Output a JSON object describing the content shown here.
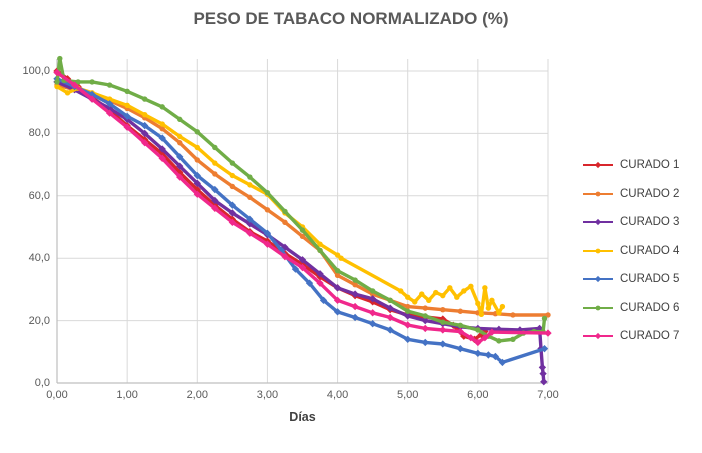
{
  "chart_data": {
    "type": "line",
    "title": "PESO DE TABACO NORMALIZADO (%)",
    "xlabel": "Días",
    "ylabel": "",
    "xlim": [
      0,
      7
    ],
    "ylim": [
      0,
      100
    ],
    "grid": true,
    "legend_position": "right",
    "grid_color": "#d9d9d9",
    "axis_color": "#bfbfbf",
    "x_ticks": [
      {
        "label": "0,00",
        "value": 0
      },
      {
        "label": "1,00",
        "value": 1
      },
      {
        "label": "2,00",
        "value": 2
      },
      {
        "label": "3,00",
        "value": 3
      },
      {
        "label": "4,00",
        "value": 4
      },
      {
        "label": "5,00",
        "value": 5
      },
      {
        "label": "6,00",
        "value": 6
      },
      {
        "label": "7,00",
        "value": 7
      }
    ],
    "y_ticks": [
      {
        "label": "0,0",
        "value": 0
      },
      {
        "label": "20,0",
        "value": 20
      },
      {
        "label": "40,0",
        "value": 40
      },
      {
        "label": "60,0",
        "value": 60
      },
      {
        "label": "80,0",
        "value": 80
      },
      {
        "label": "100,0",
        "value": 100
      }
    ],
    "series": [
      {
        "name": "CURADO 1",
        "color": "#d8262c",
        "marker": "diamond",
        "points": [
          [
            0,
            100
          ],
          [
            0.15,
            97.5
          ],
          [
            0.3,
            95
          ],
          [
            0.5,
            91.5
          ],
          [
            0.75,
            87.5
          ],
          [
            1,
            82.5
          ],
          [
            1.25,
            78
          ],
          [
            1.5,
            73.5
          ],
          [
            1.75,
            67.5
          ],
          [
            2,
            62
          ],
          [
            2.25,
            57
          ],
          [
            2.5,
            52.5
          ],
          [
            2.75,
            48.5
          ],
          [
            3,
            45.5
          ],
          [
            3.25,
            41.5
          ],
          [
            3.5,
            38
          ],
          [
            3.75,
            34
          ],
          [
            4,
            30.5
          ],
          [
            4.25,
            28
          ],
          [
            4.5,
            26
          ],
          [
            4.75,
            23.5
          ],
          [
            5,
            21.8
          ],
          [
            5.25,
            21.2
          ],
          [
            5.5,
            20.5
          ],
          [
            5.65,
            18.5
          ],
          [
            5.8,
            15
          ],
          [
            5.95,
            14
          ],
          [
            6.05,
            15.5
          ],
          [
            6.1,
            16.5
          ]
        ]
      },
      {
        "name": "CURADO 2",
        "color": "#ed7d31",
        "marker": "circle",
        "points": [
          [
            0,
            95.5
          ],
          [
            0.25,
            94
          ],
          [
            0.5,
            92.5
          ],
          [
            0.75,
            90.5
          ],
          [
            1,
            88
          ],
          [
            1.25,
            85
          ],
          [
            1.5,
            81.5
          ],
          [
            1.75,
            77
          ],
          [
            2,
            71.5
          ],
          [
            2.25,
            67
          ],
          [
            2.5,
            63
          ],
          [
            2.75,
            59.5
          ],
          [
            3,
            55.5
          ],
          [
            3.25,
            51.5
          ],
          [
            3.5,
            47
          ],
          [
            3.75,
            42.5
          ],
          [
            4,
            34.5
          ],
          [
            4.25,
            31.5
          ],
          [
            4.5,
            28.5
          ],
          [
            4.75,
            26.5
          ],
          [
            5,
            24.5
          ],
          [
            5.25,
            24
          ],
          [
            5.5,
            23.5
          ],
          [
            5.75,
            23
          ],
          [
            6,
            22.5
          ],
          [
            6.25,
            22.2
          ],
          [
            6.5,
            21.8
          ],
          [
            7,
            21.8
          ]
        ]
      },
      {
        "name": "CURADO 3",
        "color": "#7030a0",
        "marker": "diamond",
        "points": [
          [
            0,
            96.5
          ],
          [
            0.25,
            94
          ],
          [
            0.5,
            91
          ],
          [
            0.75,
            88
          ],
          [
            1,
            84.5
          ],
          [
            1.25,
            80
          ],
          [
            1.5,
            75
          ],
          [
            1.75,
            69.5
          ],
          [
            2,
            64
          ],
          [
            2.25,
            58.5
          ],
          [
            2.5,
            54.5
          ],
          [
            2.75,
            51
          ],
          [
            3,
            47.5
          ],
          [
            3.25,
            43.5
          ],
          [
            3.5,
            39.5
          ],
          [
            3.75,
            35
          ],
          [
            4,
            30.5
          ],
          [
            4.25,
            28.5
          ],
          [
            4.5,
            27
          ],
          [
            4.75,
            24
          ],
          [
            5,
            21.5
          ],
          [
            5.25,
            20
          ],
          [
            5.5,
            19
          ],
          [
            5.75,
            18
          ],
          [
            6,
            17.5
          ],
          [
            6.3,
            17.2
          ],
          [
            6.6,
            17
          ],
          [
            6.88,
            17.5
          ],
          [
            6.9,
            11
          ],
          [
            6.92,
            5
          ],
          [
            6.93,
            3
          ],
          [
            6.94,
            0.4
          ]
        ]
      },
      {
        "name": "CURADO 4",
        "color": "#ffc000",
        "marker": "circle",
        "points": [
          [
            0,
            95
          ],
          [
            0.15,
            93
          ],
          [
            0.3,
            94.5
          ],
          [
            0.5,
            93
          ],
          [
            0.75,
            91
          ],
          [
            1,
            89
          ],
          [
            1.25,
            86
          ],
          [
            1.5,
            83
          ],
          [
            1.75,
            79
          ],
          [
            2,
            75.5
          ],
          [
            2.25,
            70.5
          ],
          [
            2.5,
            66.5
          ],
          [
            2.75,
            63.5
          ],
          [
            3,
            60.5
          ],
          [
            3.25,
            54.5
          ],
          [
            3.5,
            50
          ],
          [
            3.75,
            44.5
          ],
          [
            4,
            41
          ],
          [
            4.05,
            40
          ],
          [
            4.9,
            29.5
          ],
          [
            5,
            27.5
          ],
          [
            5.1,
            26
          ],
          [
            5.2,
            28.5
          ],
          [
            5.3,
            26.5
          ],
          [
            5.4,
            29
          ],
          [
            5.5,
            28
          ],
          [
            5.6,
            30.5
          ],
          [
            5.7,
            27.5
          ],
          [
            5.8,
            29.5
          ],
          [
            5.9,
            31
          ],
          [
            6,
            25.5
          ],
          [
            6.05,
            22
          ],
          [
            6.1,
            30.5
          ],
          [
            6.15,
            24
          ],
          [
            6.2,
            26.5
          ],
          [
            6.3,
            22.5
          ],
          [
            6.35,
            24.5
          ]
        ]
      },
      {
        "name": "CURADO 5",
        "color": "#4472c4",
        "marker": "diamond",
        "points": [
          [
            0,
            97.5
          ],
          [
            0.25,
            95
          ],
          [
            0.5,
            92.5
          ],
          [
            0.75,
            89.5
          ],
          [
            1,
            85.5
          ],
          [
            1.25,
            82.5
          ],
          [
            1.5,
            78.5
          ],
          [
            1.75,
            72.5
          ],
          [
            2,
            66.5
          ],
          [
            2.25,
            62
          ],
          [
            2.5,
            57
          ],
          [
            2.75,
            52.5
          ],
          [
            3,
            48
          ],
          [
            3.2,
            42.5
          ],
          [
            3.4,
            36.5
          ],
          [
            3.6,
            32
          ],
          [
            3.8,
            26.5
          ],
          [
            4,
            22.8
          ],
          [
            4.25,
            21
          ],
          [
            4.5,
            19
          ],
          [
            4.75,
            17
          ],
          [
            5,
            14
          ],
          [
            5.25,
            13
          ],
          [
            5.5,
            12.5
          ],
          [
            5.75,
            11
          ],
          [
            6,
            9.5
          ],
          [
            6.15,
            9
          ],
          [
            6.25,
            8.5
          ],
          [
            6.35,
            6.6
          ],
          [
            6.95,
            11
          ]
        ]
      },
      {
        "name": "CURADO 6",
        "color": "#70ad47",
        "marker": "circle",
        "points": [
          [
            0,
            96.5
          ],
          [
            0.04,
            104
          ],
          [
            0.1,
            97
          ],
          [
            0.3,
            96.5
          ],
          [
            0.5,
            96.5
          ],
          [
            0.75,
            95.5
          ],
          [
            1,
            93.5
          ],
          [
            1.25,
            91
          ],
          [
            1.5,
            88.5
          ],
          [
            1.75,
            84.5
          ],
          [
            2,
            80.5
          ],
          [
            2.25,
            75.5
          ],
          [
            2.5,
            70.5
          ],
          [
            2.75,
            66
          ],
          [
            3,
            61
          ],
          [
            3.25,
            55
          ],
          [
            3.5,
            49
          ],
          [
            3.75,
            42.5
          ],
          [
            4,
            36
          ],
          [
            4.25,
            33
          ],
          [
            4.5,
            29.5
          ],
          [
            4.75,
            26.5
          ],
          [
            5,
            23
          ],
          [
            5.25,
            21.5
          ],
          [
            5.5,
            19.5
          ],
          [
            5.75,
            18.5
          ],
          [
            6,
            17
          ],
          [
            6.15,
            15
          ],
          [
            6.3,
            13.5
          ],
          [
            6.5,
            14
          ],
          [
            6.65,
            16
          ],
          [
            6.8,
            16.5
          ],
          [
            6.93,
            16.4
          ],
          [
            6.95,
            20.7
          ]
        ]
      },
      {
        "name": "CURADO 7",
        "color": "#f0288c",
        "marker": "diamond",
        "points": [
          [
            0,
            99.5
          ],
          [
            0.25,
            95.5
          ],
          [
            0.5,
            91
          ],
          [
            0.75,
            86.5
          ],
          [
            1,
            82
          ],
          [
            1.25,
            77
          ],
          [
            1.5,
            72
          ],
          [
            1.75,
            66
          ],
          [
            2,
            60.5
          ],
          [
            2.25,
            56
          ],
          [
            2.5,
            51.5
          ],
          [
            2.75,
            48
          ],
          [
            3,
            44.5
          ],
          [
            3.25,
            40.5
          ],
          [
            3.5,
            37
          ],
          [
            3.75,
            32
          ],
          [
            4,
            26.5
          ],
          [
            4.25,
            24.5
          ],
          [
            4.5,
            22.5
          ],
          [
            4.75,
            21
          ],
          [
            5,
            18.6
          ],
          [
            5.25,
            17.5
          ],
          [
            5.5,
            17
          ],
          [
            5.75,
            16.5
          ],
          [
            5.9,
            14.5
          ],
          [
            6,
            13
          ],
          [
            6.1,
            14.5
          ],
          [
            6.2,
            16.3
          ],
          [
            7,
            16
          ]
        ]
      }
    ]
  }
}
